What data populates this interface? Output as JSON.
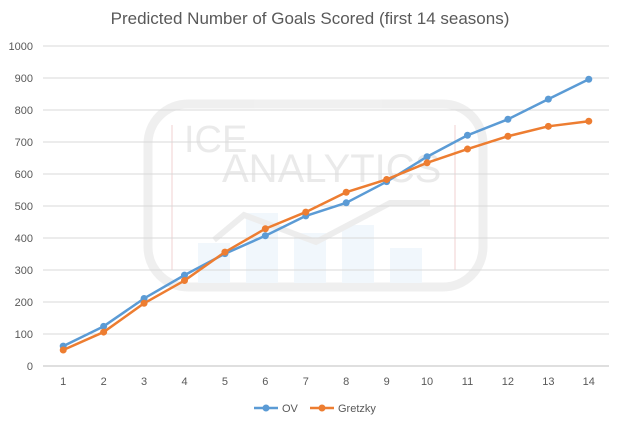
{
  "chart_data": {
    "type": "line",
    "title": "Predicted Number of Goals Scored (first 14 seasons)",
    "xlabel": "",
    "ylabel": "",
    "categories": [
      "1",
      "2",
      "3",
      "4",
      "5",
      "6",
      "7",
      "8",
      "9",
      "10",
      "11",
      "12",
      "13",
      "14"
    ],
    "ylim": [
      0,
      1000
    ],
    "yticks": [
      "0",
      "100",
      "200",
      "300",
      "400",
      "500",
      "600",
      "700",
      "800",
      "900",
      "1000"
    ],
    "grid": true,
    "legend_position": "bottom",
    "series": [
      {
        "name": "OV",
        "color": "#5b9bd5",
        "values": [
          62,
          124,
          211,
          284,
          351,
          407,
          469,
          510,
          576,
          654,
          721,
          771,
          834,
          896
        ]
      },
      {
        "name": "Gretzky",
        "color": "#ed7d31",
        "values": [
          50,
          106,
          196,
          267,
          356,
          429,
          481,
          543,
          583,
          635,
          678,
          718,
          749,
          765
        ]
      }
    ]
  },
  "watermark": {
    "line1": "ICE",
    "line2": "ANALYTICS"
  }
}
